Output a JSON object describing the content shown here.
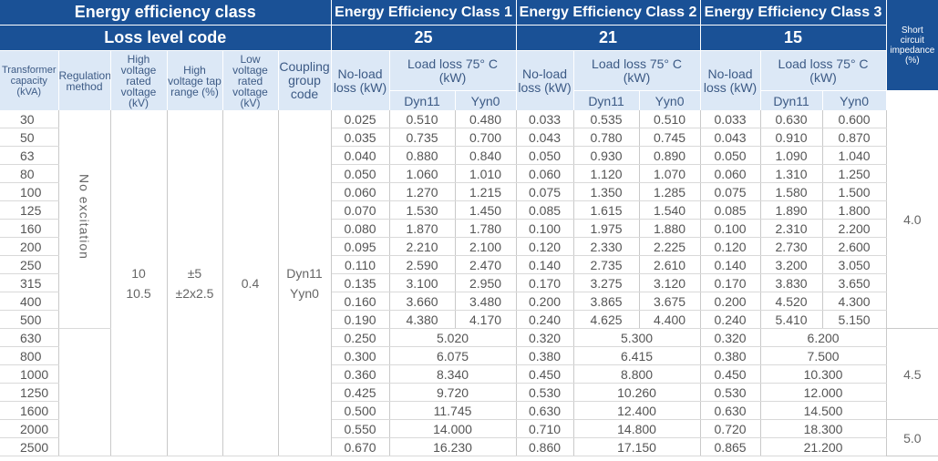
{
  "header": {
    "energy_efficiency_class": "Energy efficiency class",
    "class1": "Energy Efficiency Class 1",
    "class2": "Energy Efficiency Class 2",
    "class3": "Energy Efficiency Class 3",
    "loss_level_code": "Loss level code",
    "code1": "25",
    "code2": "21",
    "code3": "15",
    "short_circuit": "Short circuit impedance (%)",
    "transformer_capacity": "Transformer capacity (kVA)",
    "regulation_method": "Regulation method",
    "hv_rated_voltage": "High voltage rated voltage (kV)",
    "hv_tap_range": "High voltage tap range (%)",
    "lv_rated_voltage": "Low voltage rated voltage (kV)",
    "coupling_group": "Coupling group code",
    "no_load_loss": "No-load loss (kW)",
    "load_loss": "Load loss 75° C (kW)",
    "dyn11": "Dyn11",
    "yyn0": "Yyn0"
  },
  "common": {
    "regulation": "No excitation",
    "hv1": "10",
    "hv2": "10.5",
    "tap1": "±5",
    "tap2": "±2x2.5",
    "lv": "0.4",
    "coupling1": "Dyn11",
    "coupling2": "Yyn0"
  },
  "rows": [
    {
      "cap": "30",
      "nl1": "0.025",
      "d1": "0.510",
      "y1": "0.480",
      "nl2": "0.033",
      "d2": "0.535",
      "y2": "0.510",
      "nl3": "0.033",
      "d3": "0.630",
      "y3": "0.600"
    },
    {
      "cap": "50",
      "nl1": "0.035",
      "d1": "0.735",
      "y1": "0.700",
      "nl2": "0.043",
      "d2": "0.780",
      "y2": "0.745",
      "nl3": "0.043",
      "d3": "0.910",
      "y3": "0.870"
    },
    {
      "cap": "63",
      "nl1": "0.040",
      "d1": "0.880",
      "y1": "0.840",
      "nl2": "0.050",
      "d2": "0.930",
      "y2": "0.890",
      "nl3": "0.050",
      "d3": "1.090",
      "y3": "1.040"
    },
    {
      "cap": "80",
      "nl1": "0.050",
      "d1": "1.060",
      "y1": "1.010",
      "nl2": "0.060",
      "d2": "1.120",
      "y2": "1.070",
      "nl3": "0.060",
      "d3": "1.310",
      "y3": "1.250"
    },
    {
      "cap": "100",
      "nl1": "0.060",
      "d1": "1.270",
      "y1": "1.215",
      "nl2": "0.075",
      "d2": "1.350",
      "y2": "1.285",
      "nl3": "0.075",
      "d3": "1.580",
      "y3": "1.500"
    },
    {
      "cap": "125",
      "nl1": "0.070",
      "d1": "1.530",
      "y1": "1.450",
      "nl2": "0.085",
      "d2": "1.615",
      "y2": "1.540",
      "nl3": "0.085",
      "d3": "1.890",
      "y3": "1.800"
    },
    {
      "cap": "160",
      "nl1": "0.080",
      "d1": "1.870",
      "y1": "1.780",
      "nl2": "0.100",
      "d2": "1.975",
      "y2": "1.880",
      "nl3": "0.100",
      "d3": "2.310",
      "y3": "2.200"
    },
    {
      "cap": "200",
      "nl1": "0.095",
      "d1": "2.210",
      "y1": "2.100",
      "nl2": "0.120",
      "d2": "2.330",
      "y2": "2.225",
      "nl3": "0.120",
      "d3": "2.730",
      "y3": "2.600"
    },
    {
      "cap": "250",
      "nl1": "0.110",
      "d1": "2.590",
      "y1": "2.470",
      "nl2": "0.140",
      "d2": "2.735",
      "y2": "2.610",
      "nl3": "0.140",
      "d3": "3.200",
      "y3": "3.050"
    },
    {
      "cap": "315",
      "nl1": "0.135",
      "d1": "3.100",
      "y1": "2.950",
      "nl2": "0.170",
      "d2": "3.275",
      "y2": "3.120",
      "nl3": "0.170",
      "d3": "3.830",
      "y3": "3.650"
    },
    {
      "cap": "400",
      "nl1": "0.160",
      "d1": "3.660",
      "y1": "3.480",
      "nl2": "0.200",
      "d2": "3.865",
      "y2": "3.675",
      "nl3": "0.200",
      "d3": "4.520",
      "y3": "4.300"
    },
    {
      "cap": "500",
      "nl1": "0.190",
      "d1": "4.380",
      "y1": "4.170",
      "nl2": "0.240",
      "d2": "4.625",
      "y2": "4.400",
      "nl3": "0.240",
      "d3": "5.410",
      "y3": "5.150"
    },
    {
      "cap": "630",
      "nl1": "0.250",
      "l1": "5.020",
      "nl2": "0.320",
      "l2": "5.300",
      "nl3": "0.320",
      "l3": "6.200"
    },
    {
      "cap": "800",
      "nl1": "0.300",
      "l1": "6.075",
      "nl2": "0.380",
      "l2": "6.415",
      "nl3": "0.380",
      "l3": "7.500"
    },
    {
      "cap": "1000",
      "nl1": "0.360",
      "l1": "8.340",
      "nl2": "0.450",
      "l2": "8.800",
      "nl3": "0.450",
      "l3": "10.300"
    },
    {
      "cap": "1250",
      "nl1": "0.425",
      "l1": "9.720",
      "nl2": "0.530",
      "l2": "10.260",
      "nl3": "0.530",
      "l3": "12.000"
    },
    {
      "cap": "1600",
      "nl1": "0.500",
      "l1": "11.745",
      "nl2": "0.630",
      "l2": "12.400",
      "nl3": "0.630",
      "l3": "14.500"
    },
    {
      "cap": "2000",
      "nl1": "0.550",
      "l1": "14.000",
      "nl2": "0.710",
      "l2": "14.800",
      "nl3": "0.720",
      "l3": "18.300"
    },
    {
      "cap": "2500",
      "nl1": "0.670",
      "l1": "16.230",
      "nl2": "0.860",
      "l2": "17.150",
      "nl3": "0.865",
      "l3": "21.200"
    }
  ],
  "impedance": {
    "group1": "4.0",
    "group2": "4.5",
    "group3": "5.0"
  },
  "colors": {
    "header_dark": "#1a5196",
    "header_light": "#dce8f6",
    "header_text_light": "#3c5a85",
    "body_text": "#555555"
  }
}
